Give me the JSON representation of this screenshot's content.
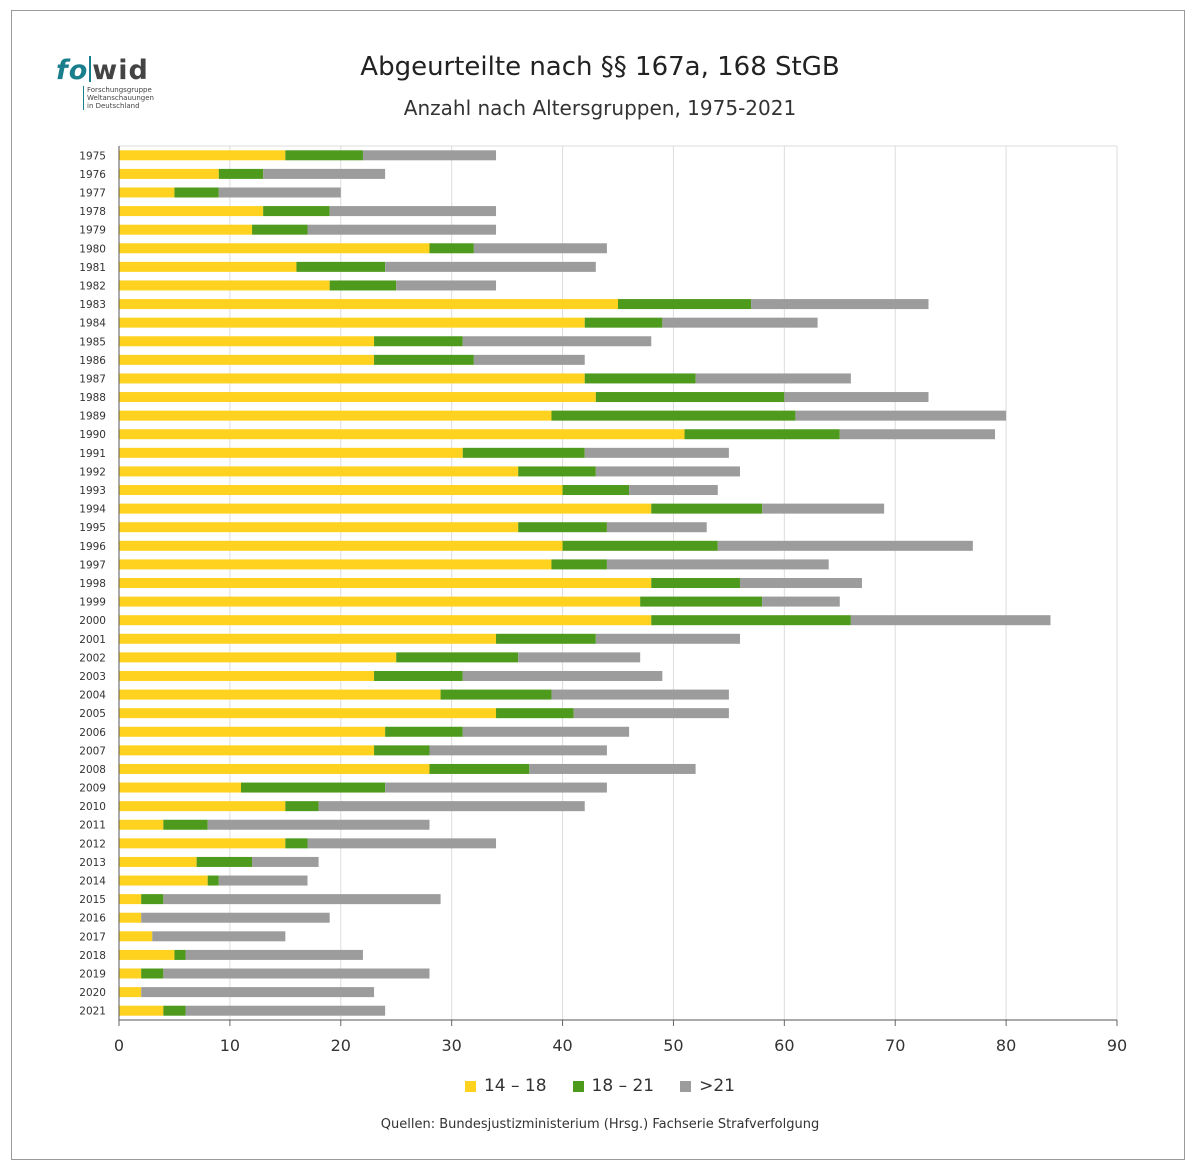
{
  "logo": {
    "word_part1": "fo",
    "word_part2": "wid",
    "tagline": [
      "Forschungsgruppe",
      "Weltanschauungen",
      "in Deutschland"
    ]
  },
  "colors": {
    "series_14_18": "#ffd21f",
    "series_18_21": "#4e9a1c",
    "series_over21": "#9c9c9c",
    "grid": "#dcdcdc",
    "brand": "#1a7f8c"
  },
  "source": "Quellen: Bundesjustizministerium (Hrsg.) Fachserie Strafverfolgung",
  "chart_data": {
    "type": "bar",
    "orientation": "horizontal",
    "stacked": true,
    "title": "Abgeurteilte nach §§ 167a, 168 StGB",
    "subtitle": "Anzahl nach Altersgruppen, 1975-2021",
    "xlabel": "",
    "ylabel": "",
    "xlim": [
      0,
      90
    ],
    "xticks": [
      0,
      10,
      20,
      30,
      40,
      50,
      60,
      70,
      80,
      90
    ],
    "grid": true,
    "legend_position": "bottom",
    "categories": [
      "1975",
      "1976",
      "1977",
      "1978",
      "1979",
      "1980",
      "1981",
      "1982",
      "1983",
      "1984",
      "1985",
      "1986",
      "1987",
      "1988",
      "1989",
      "1990",
      "1991",
      "1992",
      "1993",
      "1994",
      "1995",
      "1996",
      "1997",
      "1998",
      "1999",
      "2000",
      "2001",
      "2002",
      "2003",
      "2004",
      "2005",
      "2006",
      "2007",
      "2008",
      "2009",
      "2010",
      "2011",
      "2012",
      "2013",
      "2014",
      "2015",
      "2016",
      "2017",
      "2018",
      "2019",
      "2020",
      "2021"
    ],
    "series": [
      {
        "name": "14 – 18",
        "values": [
          15,
          9,
          5,
          13,
          12,
          28,
          16,
          19,
          45,
          42,
          23,
          23,
          42,
          43,
          39,
          51,
          31,
          36,
          40,
          48,
          36,
          40,
          39,
          48,
          47,
          48,
          34,
          25,
          23,
          29,
          34,
          24,
          23,
          28,
          11,
          15,
          4,
          15,
          7,
          8,
          2,
          2,
          3,
          5,
          2,
          2,
          4
        ]
      },
      {
        "name": "18 – 21",
        "values": [
          7,
          4,
          4,
          6,
          5,
          4,
          8,
          6,
          12,
          7,
          8,
          9,
          10,
          17,
          22,
          14,
          11,
          7,
          6,
          10,
          8,
          14,
          5,
          8,
          11,
          18,
          9,
          11,
          8,
          10,
          7,
          7,
          5,
          9,
          13,
          3,
          4,
          2,
          5,
          1,
          2,
          0,
          0,
          1,
          2,
          0,
          2
        ]
      },
      {
        "name": ">21",
        "values": [
          12,
          11,
          11,
          15,
          17,
          12,
          19,
          9,
          16,
          14,
          17,
          10,
          14,
          13,
          19,
          14,
          13,
          13,
          8,
          11,
          9,
          23,
          20,
          11,
          7,
          18,
          13,
          11,
          18,
          16,
          14,
          15,
          16,
          15,
          20,
          24,
          20,
          17,
          6,
          8,
          25,
          17,
          12,
          16,
          24,
          21,
          18
        ]
      }
    ]
  }
}
